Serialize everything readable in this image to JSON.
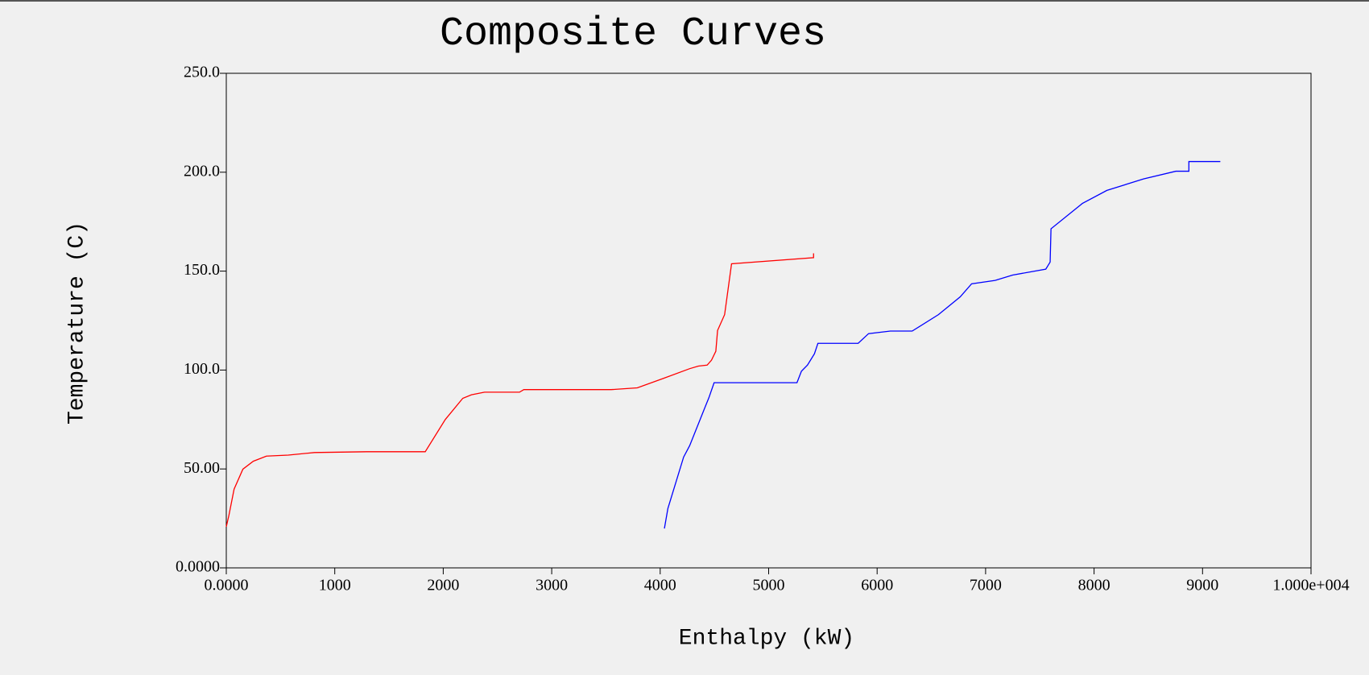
{
  "chart_data": {
    "type": "line",
    "title": "Composite Curves",
    "x_label": "Enthalpy (kW)",
    "y_label": "Temperature (C)",
    "xlim": [
      0,
      10000
    ],
    "xticks": [
      {
        "value": 0,
        "label": "0.0000"
      },
      1000,
      2000,
      3000,
      4000,
      5000,
      6000,
      7000,
      8000,
      9000,
      {
        "value": 10000,
        "label": "1.000e+004"
      }
    ],
    "ylim": [
      0,
      250
    ],
    "yticks": [
      {
        "value": 0,
        "label": "0.0000"
      },
      {
        "value": 50,
        "label": "50.00"
      },
      {
        "value": 100,
        "label": "100.0"
      },
      {
        "value": 150,
        "label": "150.0"
      },
      {
        "value": 200,
        "label": "200.0"
      },
      {
        "value": 250,
        "label": "250.0"
      }
    ],
    "grid": false,
    "series": [
      {
        "color": "#ff0000",
        "x": [
          0,
          24,
          72,
          153,
          249,
          370,
          571,
          813,
          1295,
          1834,
          2019,
          2180,
          2260,
          2381,
          2703,
          2743,
          3548,
          3789,
          4030,
          4272,
          4352,
          4433,
          4473,
          4513,
          4529,
          4594,
          4658,
          5414,
          5414
        ],
        "values": [
          20.8,
          26.5,
          39.8,
          49.9,
          53.9,
          56.5,
          57,
          58.3,
          58.7,
          58.7,
          75,
          85.7,
          87.5,
          88.8,
          88.8,
          90.1,
          90.1,
          91,
          95.8,
          100.7,
          102,
          102.5,
          105,
          109.5,
          120,
          128,
          153.7,
          156.8,
          159
        ]
      },
      {
        "color": "#0000ff",
        "x": [
          4039,
          4071,
          4216,
          4272,
          4417,
          4449,
          4497,
          5261,
          5302,
          5358,
          5422,
          5454,
          5825,
          5921,
          6122,
          6323,
          6565,
          6766,
          6871,
          7088,
          7249,
          7555,
          7595,
          7603,
          7892,
          8118,
          8456,
          8754,
          8874,
          8874,
          9164
        ],
        "values": [
          19.9,
          30,
          56,
          61.8,
          81.7,
          86,
          93.6,
          93.6,
          99.4,
          102.5,
          108.2,
          113.5,
          113.5,
          118.4,
          119.7,
          119.7,
          128,
          137,
          143.6,
          145.3,
          148,
          151,
          154.6,
          171.4,
          184.2,
          190.8,
          196.6,
          200.5,
          200.5,
          205.4,
          205.4
        ]
      }
    ]
  }
}
